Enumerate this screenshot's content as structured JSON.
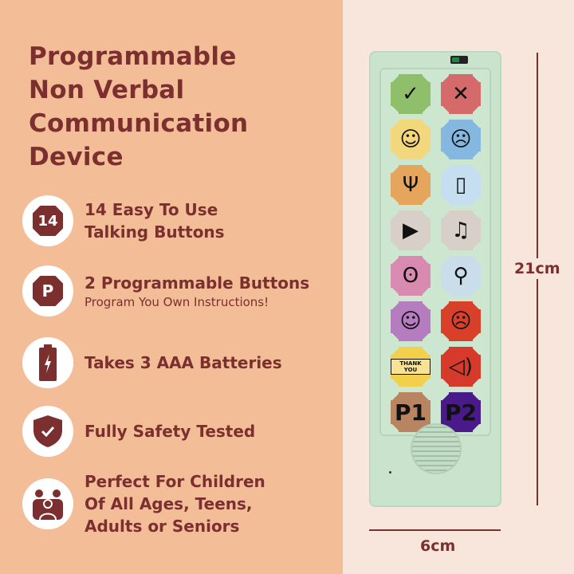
{
  "title": [
    "Programmable",
    "Non Verbal",
    "Communication",
    "Device"
  ],
  "features": [
    {
      "icon": "fourteen-buttons-icon",
      "badge": "14",
      "lines": [
        "14 Easy To Use",
        "Talking Buttons"
      ]
    },
    {
      "icon": "programmable-button-icon",
      "badge": "P",
      "lines": [
        "2 Programmable Buttons"
      ],
      "sub": "Program You Own Instructions!"
    },
    {
      "icon": "battery-icon",
      "lines": [
        "Takes 3 AAA Batteries"
      ]
    },
    {
      "icon": "shield-check-icon",
      "lines": [
        "Fully Safety Tested"
      ]
    },
    {
      "icon": "family-icon",
      "lines": [
        "Perfect For Children",
        "Of All Ages, Teens,",
        "Adults or Seniors"
      ]
    }
  ],
  "device": {
    "buttons": [
      {
        "icon": "check-icon",
        "glyph": "✓",
        "color": "#8fbf6a"
      },
      {
        "icon": "cross-icon",
        "glyph": "✕",
        "color": "#d46a6a"
      },
      {
        "icon": "happy-face-icon",
        "glyph": "☺",
        "color": "#f3d77c"
      },
      {
        "icon": "sad-face-icon",
        "glyph": "☹",
        "color": "#84b8e0"
      },
      {
        "icon": "fork-spoon-icon",
        "glyph": "Ψ",
        "color": "#e5a55c"
      },
      {
        "icon": "drink-glass-icon",
        "glyph": "▯",
        "color": "#c5dff0"
      },
      {
        "icon": "tv-icon",
        "glyph": "▶",
        "color": "#d9cfc9"
      },
      {
        "icon": "music-note-icon",
        "glyph": "♫",
        "color": "#d9cfc9"
      },
      {
        "icon": "teddy-bear-icon",
        "glyph": "ʘ",
        "color": "#d98ab0"
      },
      {
        "icon": "toilet-icon",
        "glyph": "⚲",
        "color": "#c9ddeb"
      },
      {
        "icon": "sleepy-face-icon",
        "glyph": "☺",
        "color": "#b57cc0"
      },
      {
        "icon": "sick-face-icon",
        "glyph": "☹",
        "color": "#d9402a"
      },
      {
        "icon": "thank-you-icon",
        "text": "THANK YOU",
        "color": "#f2d04c"
      },
      {
        "icon": "speaker-loud-icon",
        "glyph": "◁)",
        "color": "#d63a2a"
      },
      {
        "icon": "p1-icon",
        "label": "P1",
        "color": "#b98560"
      },
      {
        "icon": "p2-icon",
        "label": "P2",
        "color": "#4a1a8a"
      }
    ]
  },
  "dimensions": {
    "height": "21cm",
    "width": "6cm"
  },
  "colors": {
    "left_bg": "#f3bd98",
    "right_bg": "#f8e5dc",
    "text": "#7b2f2f",
    "device": "#c9e3cc"
  }
}
